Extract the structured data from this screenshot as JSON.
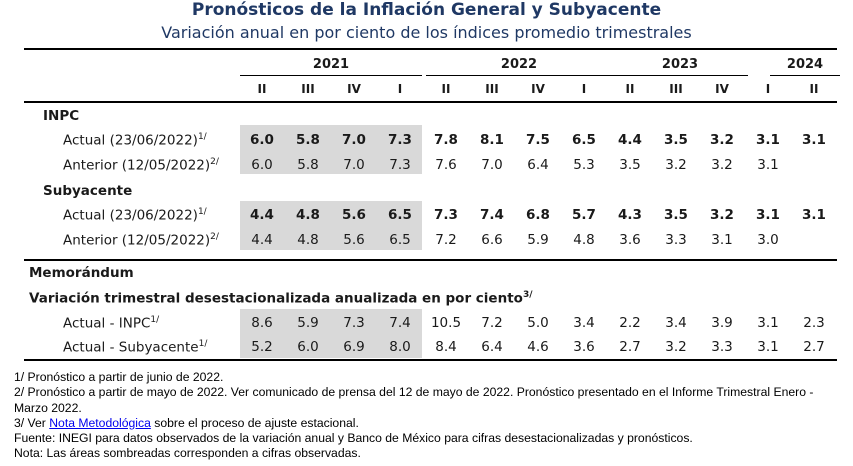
{
  "title": "Pronósticos de la Inflación General y Subyacente",
  "subtitle": "Variación anual en por ciento de los índices promedio trimestrales",
  "years": [
    {
      "label": "2021"
    },
    {
      "label": "2022"
    },
    {
      "label": "2023"
    },
    {
      "label": "2024"
    }
  ],
  "quarters": [
    "II",
    "III",
    "IV",
    "I",
    "II",
    "III",
    "IV",
    "I",
    "II",
    "III",
    "IV",
    "I",
    "II"
  ],
  "sections": {
    "inpc": "INPC",
    "subyacente": "Subyacente",
    "memorandum": "Memorándum",
    "trimestral": "Variación trimestral desestacionalizada anualizada en por ciento",
    "trimestral_sup": "3/"
  },
  "rows": {
    "inpc_actual": {
      "label": "Actual (23/06/2022)",
      "sup": "1/",
      "values": [
        "6.0",
        "5.8",
        "7.0",
        "7.3",
        "7.8",
        "8.1",
        "7.5",
        "6.5",
        "4.4",
        "3.5",
        "3.2",
        "3.1",
        "3.1"
      ]
    },
    "inpc_anterior": {
      "label": "Anterior (12/05/2022)",
      "sup": "2/",
      "values": [
        "6.0",
        "5.8",
        "7.0",
        "7.3",
        "7.6",
        "7.0",
        "6.4",
        "5.3",
        "3.5",
        "3.2",
        "3.2",
        "3.1",
        ""
      ]
    },
    "sub_actual": {
      "label": "Actual (23/06/2022)",
      "sup": "1/",
      "values": [
        "4.4",
        "4.8",
        "5.6",
        "6.5",
        "7.3",
        "7.4",
        "6.8",
        "5.7",
        "4.3",
        "3.5",
        "3.2",
        "3.1",
        "3.1"
      ]
    },
    "sub_anterior": {
      "label": "Anterior (12/05/2022)",
      "sup": "2/",
      "values": [
        "4.4",
        "4.8",
        "5.6",
        "6.5",
        "7.2",
        "6.6",
        "5.9",
        "4.8",
        "3.6",
        "3.3",
        "3.1",
        "3.0",
        ""
      ]
    },
    "mem_inpc": {
      "label": "Actual - INPC",
      "sup": "1/",
      "values": [
        "8.6",
        "5.9",
        "7.3",
        "7.4",
        "10.5",
        "7.2",
        "5.0",
        "3.4",
        "2.2",
        "3.4",
        "3.9",
        "3.1",
        "2.3"
      ]
    },
    "mem_sub": {
      "label": "Actual - Subyacente",
      "sup": "1/",
      "values": [
        "5.2",
        "6.0",
        "6.9",
        "8.0",
        "8.4",
        "6.4",
        "4.6",
        "3.6",
        "2.7",
        "3.2",
        "3.3",
        "3.1",
        "2.7"
      ]
    }
  },
  "notes": {
    "n1": "1/ Pronóstico a partir de junio de 2022.",
    "n2": "2/ Pronóstico a partir de mayo de 2022. Ver comunicado de prensa del 12 de mayo de 2022. Pronóstico presentado en el Informe Trimestral Enero - Marzo 2022.",
    "n3_pre": "3/ Ver ",
    "n3_link": "Nota Metodológica",
    "n3_post": " sobre el proceso de ajuste estacional.",
    "fuente": "Fuente: INEGI para datos observados de la variación anual y Banco de México para cifras desestacionalizadas y pronósticos.",
    "nota": "Nota: Las áreas sombreadas corresponden a cifras observadas."
  }
}
